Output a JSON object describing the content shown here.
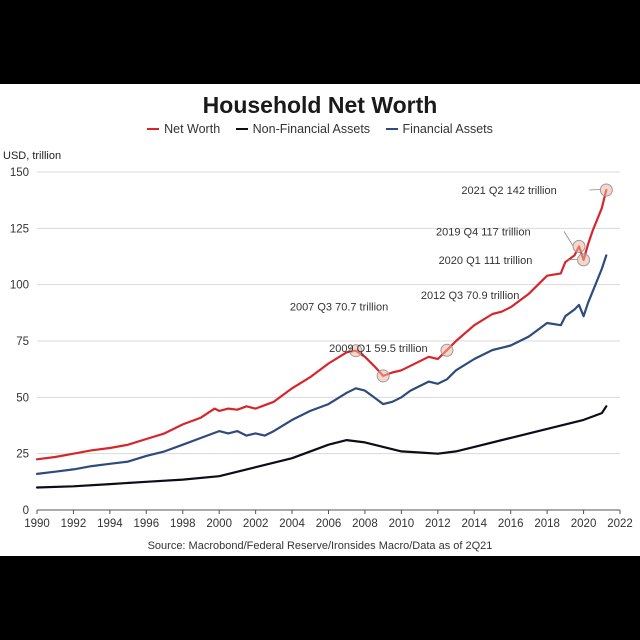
{
  "chart_data": {
    "type": "line",
    "title": "Household Net Worth",
    "ylabel": "USD, trillion",
    "source": "Source: Macrobond/Federal Reserve/Ironsides Macro/Data as of 2Q21",
    "xlim": [
      1990,
      2022
    ],
    "ylim": [
      0,
      150
    ],
    "xticks": [
      "1990",
      "1992",
      "1994",
      "1996",
      "1998",
      "2000",
      "2002",
      "2004",
      "2006",
      "2008",
      "2010",
      "2012",
      "2014",
      "2016",
      "2018",
      "2020",
      "2022"
    ],
    "yticks": [
      "0",
      "25",
      "50",
      "75",
      "100",
      "125",
      "150"
    ],
    "grid": true,
    "legend_position": "top",
    "series": [
      {
        "name": "Net Worth",
        "color": "#d7262b",
        "x": [
          1990,
          1991,
          1992,
          1993,
          1994,
          1995,
          1996,
          1997,
          1998,
          1999,
          1999.75,
          2000,
          2000.5,
          2001,
          2001.5,
          2002,
          2002.5,
          2003,
          2004,
          2005,
          2006,
          2007,
          2007.5,
          2008,
          2008.5,
          2009,
          2009.5,
          2010,
          2010.5,
          2011,
          2011.5,
          2012,
          2012.5,
          2013,
          2014,
          2015,
          2015.5,
          2016,
          2017,
          2018,
          2018.75,
          2019,
          2019.5,
          2019.75,
          2020,
          2020.25,
          2020.5,
          2021,
          2021.25
        ],
        "values": [
          22.5,
          23.5,
          25,
          26.5,
          27.5,
          29,
          31.5,
          34,
          38,
          41,
          45,
          44,
          45,
          44.5,
          46,
          45,
          46.5,
          48,
          54,
          59,
          65,
          70,
          70.7,
          68,
          64,
          59.5,
          61,
          62,
          64,
          66,
          68,
          67,
          70.9,
          75,
          82,
          87,
          88,
          90,
          96,
          104,
          105,
          110,
          113,
          117,
          111,
          118,
          124,
          134,
          142
        ]
      },
      {
        "name": "Non-Financial Assets",
        "color": "#0d0d1a",
        "x": [
          1990,
          1992,
          1994,
          1996,
          1998,
          2000,
          2002,
          2004,
          2006,
          2007,
          2008,
          2009,
          2010,
          2011,
          2012,
          2013,
          2014,
          2016,
          2018,
          2019,
          2020,
          2021,
          2021.25
        ],
        "values": [
          10,
          10.5,
          11.5,
          12.5,
          13.5,
          15,
          19,
          23,
          29,
          31,
          30,
          28,
          26,
          25.5,
          25,
          26,
          28,
          32,
          36,
          38,
          40,
          43,
          46
        ]
      },
      {
        "name": "Financial Assets",
        "color": "#2f4b7c",
        "x": [
          1990,
          1991,
          1992,
          1993,
          1994,
          1995,
          1996,
          1997,
          1998,
          1999,
          2000,
          2000.5,
          2001,
          2001.5,
          2002,
          2002.5,
          2003,
          2004,
          2005,
          2006,
          2007,
          2007.5,
          2008,
          2008.5,
          2009,
          2009.5,
          2010,
          2010.5,
          2011,
          2011.5,
          2012,
          2012.5,
          2013,
          2014,
          2015,
          2015.5,
          2016,
          2017,
          2018,
          2018.75,
          2019,
          2019.5,
          2019.75,
          2020,
          2020.25,
          2020.5,
          2021,
          2021.25
        ],
        "values": [
          16,
          17,
          18,
          19.5,
          20.5,
          21.5,
          24,
          26,
          29,
          32,
          35,
          34,
          35,
          33,
          34,
          33,
          35,
          40,
          44,
          47,
          52,
          54,
          53,
          50,
          47,
          48,
          50,
          53,
          55,
          57,
          56,
          58,
          62,
          67,
          71,
          72,
          73,
          77,
          83,
          82,
          86,
          89,
          91,
          86,
          92,
          97,
          107,
          113
        ]
      }
    ],
    "annotations": [
      {
        "label": "2007 Q3 70.7 trillion",
        "x": 2007.5,
        "y": 70.7
      },
      {
        "label": "2009 Q1 59.5 trillion",
        "x": 2009,
        "y": 59.5
      },
      {
        "label": "2012 Q3 70.9 trillion",
        "x": 2012.5,
        "y": 70.9
      },
      {
        "label": "2019 Q4 117 trillion",
        "x": 2019.75,
        "y": 117
      },
      {
        "label": "2020 Q1 111 trillion",
        "x": 2020,
        "y": 111
      },
      {
        "label": "2021 Q2 142 trillion",
        "x": 2021.25,
        "y": 142
      }
    ]
  }
}
